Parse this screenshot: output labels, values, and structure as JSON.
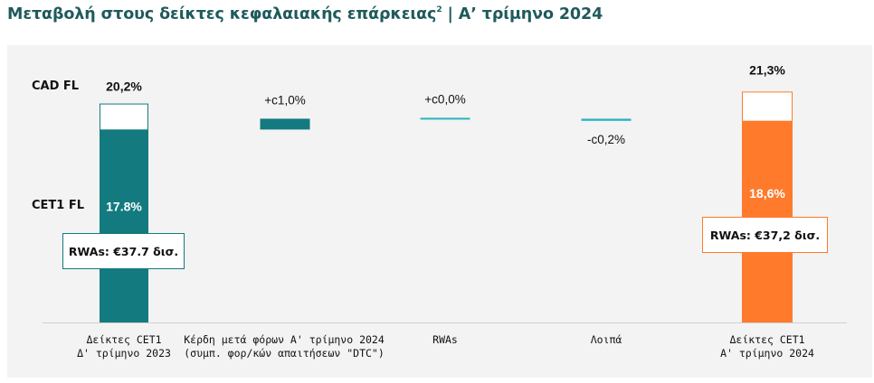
{
  "title": {
    "text": "Μεταβολή στους δείκτες κεφαλαιακής επάρκειας",
    "sup": "2",
    "suffix": "| Α’ τρίμηνο 2024"
  },
  "legend": {
    "cad": "CAD FL",
    "cet1": "CET1 FL"
  },
  "colors": {
    "teal": "#137a7f",
    "light_teal": "#2bb3c0",
    "orange": "#ff7a2b",
    "panel": "#f3f3f3",
    "title": "#1f5a5c"
  },
  "rwa_boxes": {
    "start": "RWAs: €37.7 δισ.",
    "end": "RWAs: €37,2 δισ."
  },
  "chart_data": {
    "type": "bar",
    "subtype": "waterfall",
    "categories": [
      [
        "Δείκτες CET1",
        "Δ' τρίμηνο 2023"
      ],
      [
        "Κέρδη μετά φόρων  Α' τρίμηνο 2024",
        "(συμπ. φορ/κών απαιτήσεων \"DTC\")"
      ],
      [
        "RWAs"
      ],
      [
        "Λοιπά"
      ],
      [
        "Δείκτες CET1",
        "Α' τρίμηνο 2024"
      ]
    ],
    "series": [
      {
        "name": "CET1 FL",
        "values": [
          17.8,
          1.0,
          0.0,
          -0.2,
          18.6
        ]
      },
      {
        "name": "CAD FL",
        "values": [
          20.2,
          null,
          null,
          null,
          21.3
        ]
      }
    ],
    "value_labels": {
      "cet1_start": "17.8%",
      "cad_start": "20,2%",
      "deltas": [
        "+c1,0%",
        "+c0,0%",
        "-c0,2%"
      ],
      "cet1_end": "18,6%",
      "cad_end": "21,3%"
    },
    "ylim": [
      0,
      22
    ],
    "grid": false
  }
}
